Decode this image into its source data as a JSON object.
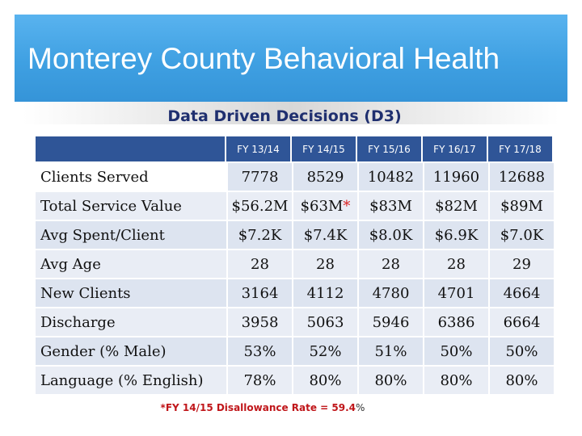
{
  "slide": {
    "title": "Monterey County Behavioral Health",
    "subtitle": "Data Driven Decisions (D3)",
    "footnote": "*FY 14/15 Disallowance Rate = 59.4",
    "footnote_suffix": "%"
  },
  "colors": {
    "header_blue": "#3fa0e2",
    "table_header": "#2f5597",
    "row_fill": "#dde4f0",
    "accent_red": "#c0161a"
  },
  "table": {
    "columns": [
      "FY 13/14",
      "FY 14/15",
      "FY 15/16",
      "FY 16/17",
      "FY 17/18"
    ],
    "rows": [
      {
        "label": "Clients Served",
        "values": [
          "7778",
          "8529",
          "10482",
          "11960",
          "12688"
        ]
      },
      {
        "label": "Total Service Value",
        "values": [
          "$56.2M",
          "$63M",
          "$83M",
          "$82M",
          "$89M"
        ],
        "marker": "*"
      },
      {
        "label": "Avg Spent/Client",
        "values": [
          "$7.2K",
          "$7.4K",
          "$8.0K",
          "$6.9K",
          "$7.0K"
        ]
      },
      {
        "label": "Avg Age",
        "values": [
          "28",
          "28",
          "28",
          "28",
          "29"
        ]
      },
      {
        "label": "New Clients",
        "values": [
          "3164",
          "4112",
          "4780",
          "4701",
          "4664"
        ]
      },
      {
        "label": "Discharge",
        "values": [
          "3958",
          "5063",
          "5946",
          "6386",
          "6664"
        ]
      },
      {
        "label": "Gender (% Male)",
        "values": [
          "53%",
          "52%",
          "51%",
          "50%",
          "50%"
        ]
      },
      {
        "label": "Language (% English)",
        "values": [
          "78%",
          "80%",
          "80%",
          "80%",
          "80%"
        ]
      }
    ]
  }
}
